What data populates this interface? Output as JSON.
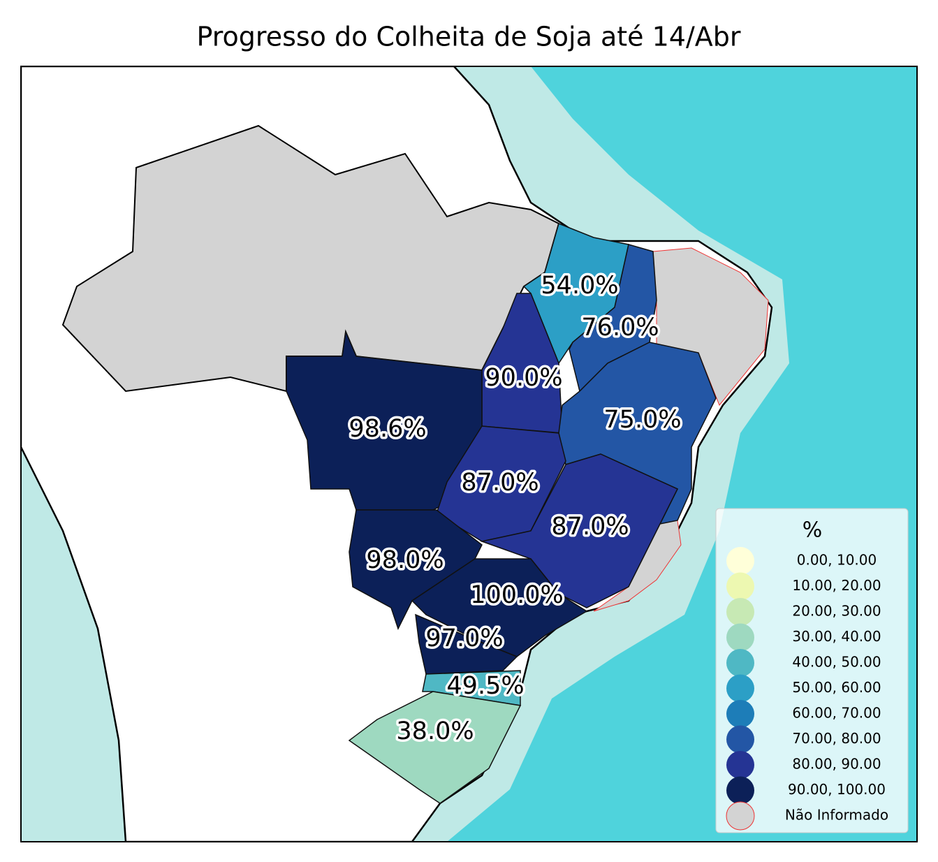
{
  "title": "Progresso do Colheita de Soja até 14/Abr",
  "regions": [
    {
      "label": "54.0%",
      "color": "#2c9fc6"
    },
    {
      "label": "76.0%",
      "color": "#2356a5"
    },
    {
      "label": "90.0%",
      "color": "#253494"
    },
    {
      "label": "75.0%",
      "color": "#2356a5"
    },
    {
      "label": "98.6%",
      "color": "#0c2058"
    },
    {
      "label": "87.0%",
      "color": "#253494"
    },
    {
      "label": "87.0%",
      "color": "#253494"
    },
    {
      "label": "98.0%",
      "color": "#0c2058"
    },
    {
      "label": "100.0%",
      "color": "#0c2058"
    },
    {
      "label": "97.0%",
      "color": "#0c2058"
    },
    {
      "label": "49.5%",
      "color": "#4fb8c4"
    },
    {
      "label": "38.0%",
      "color": "#9ed9c0"
    }
  ],
  "legend": {
    "title": "%",
    "items": [
      {
        "label": "0.00,  10.00",
        "color": "#ffffd9"
      },
      {
        "label": "10.00,  20.00",
        "color": "#edf8b1"
      },
      {
        "label": "20.00,  30.00",
        "color": "#c7e9b4"
      },
      {
        "label": "30.00,  40.00",
        "color": "#9ed9c0"
      },
      {
        "label": "40.00,  50.00",
        "color": "#4fb8c4"
      },
      {
        "label": "50.00,  60.00",
        "color": "#2c9fc6"
      },
      {
        "label": "60.00,  70.00",
        "color": "#1d7db8"
      },
      {
        "label": "70.00,  80.00",
        "color": "#2356a5"
      },
      {
        "label": "80.00,  90.00",
        "color": "#253494"
      },
      {
        "label": "90.00, 100.00",
        "color": "#0c2058"
      },
      {
        "label": "Não Informado",
        "color": "#d3d3d3"
      }
    ]
  }
}
